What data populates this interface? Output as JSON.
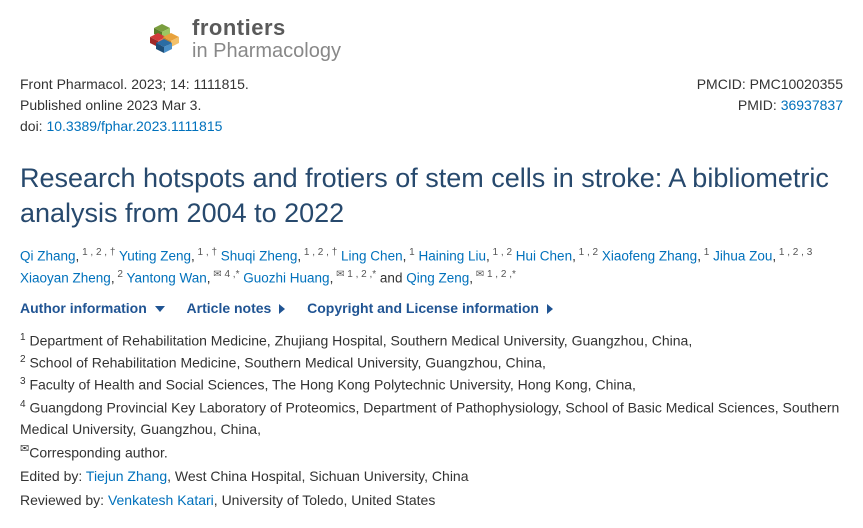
{
  "journal": {
    "name_line1": "frontiers",
    "name_line2": "in Pharmacology"
  },
  "citation": {
    "line1": "Front Pharmacol. 2023; 14: 1111815.",
    "published": "Published online 2023 Mar 3.",
    "doi_label": "doi: ",
    "doi_link": "10.3389/fphar.2023.1111815"
  },
  "ids": {
    "pmcid": "PMCID: PMC10020355",
    "pmid_label": "PMID: ",
    "pmid_link": "36937837"
  },
  "title": "Research hotspots and frotiers of stem cells in stroke: A bibliometric analysis from 2004 to 2022",
  "authors": [
    {
      "name": "Qi Zhang",
      "sup": "1 , 2 , †"
    },
    {
      "name": "Yuting Zeng",
      "sup": "1 , †"
    },
    {
      "name": "Shuqi Zheng",
      "sup": "1 , 2 , †"
    },
    {
      "name": "Ling Chen",
      "sup": "1"
    },
    {
      "name": "Haining Liu",
      "sup": "1 , 2"
    },
    {
      "name": "Hui Chen",
      "sup": "1 , 2"
    },
    {
      "name": "Xiaofeng Zhang",
      "sup": "1"
    },
    {
      "name": "Jihua Zou",
      "sup": "1 , 2 , 3"
    },
    {
      "name": "Xiaoyan Zheng",
      "sup": "2"
    },
    {
      "name": "Yantong Wan",
      "sup": "✉ 4 ,*"
    },
    {
      "name": "Guozhi Huang",
      "sup": "✉ 1 , 2 ,*"
    },
    {
      "name": "Qing Zeng",
      "sup": "✉ 1 , 2 ,*",
      "last": true
    }
  ],
  "info_links": {
    "author": "Author information",
    "notes": "Article notes",
    "license": "Copyright and License information"
  },
  "affiliations": [
    {
      "n": "1",
      "text": " Department of Rehabilitation Medicine, Zhujiang Hospital, Southern Medical University, Guangzhou, China,"
    },
    {
      "n": "2",
      "text": " School of Rehabilitation Medicine, Southern Medical University, Guangzhou, China,"
    },
    {
      "n": "3",
      "text": " Faculty of Health and Social Sciences, The Hong Kong Polytechnic University, Hong Kong, China,"
    },
    {
      "n": "4",
      "text": " Guangdong Provincial Key Laboratory of Proteomics, Department of Pathophysiology, School of Basic Medical Sciences, Southern Medical University, Guangzhou, China,"
    }
  ],
  "corresponding": {
    "mark": "✉",
    "text": "Corresponding author."
  },
  "edited_by": {
    "label": "Edited by: ",
    "name": "Tiejun Zhang",
    "aff": ", West China Hospital, Sichuan University, China"
  },
  "reviewed_by": {
    "label": "Reviewed by: ",
    "name": "Venkatesh Katari",
    "aff": ", University of Toledo, United States"
  }
}
